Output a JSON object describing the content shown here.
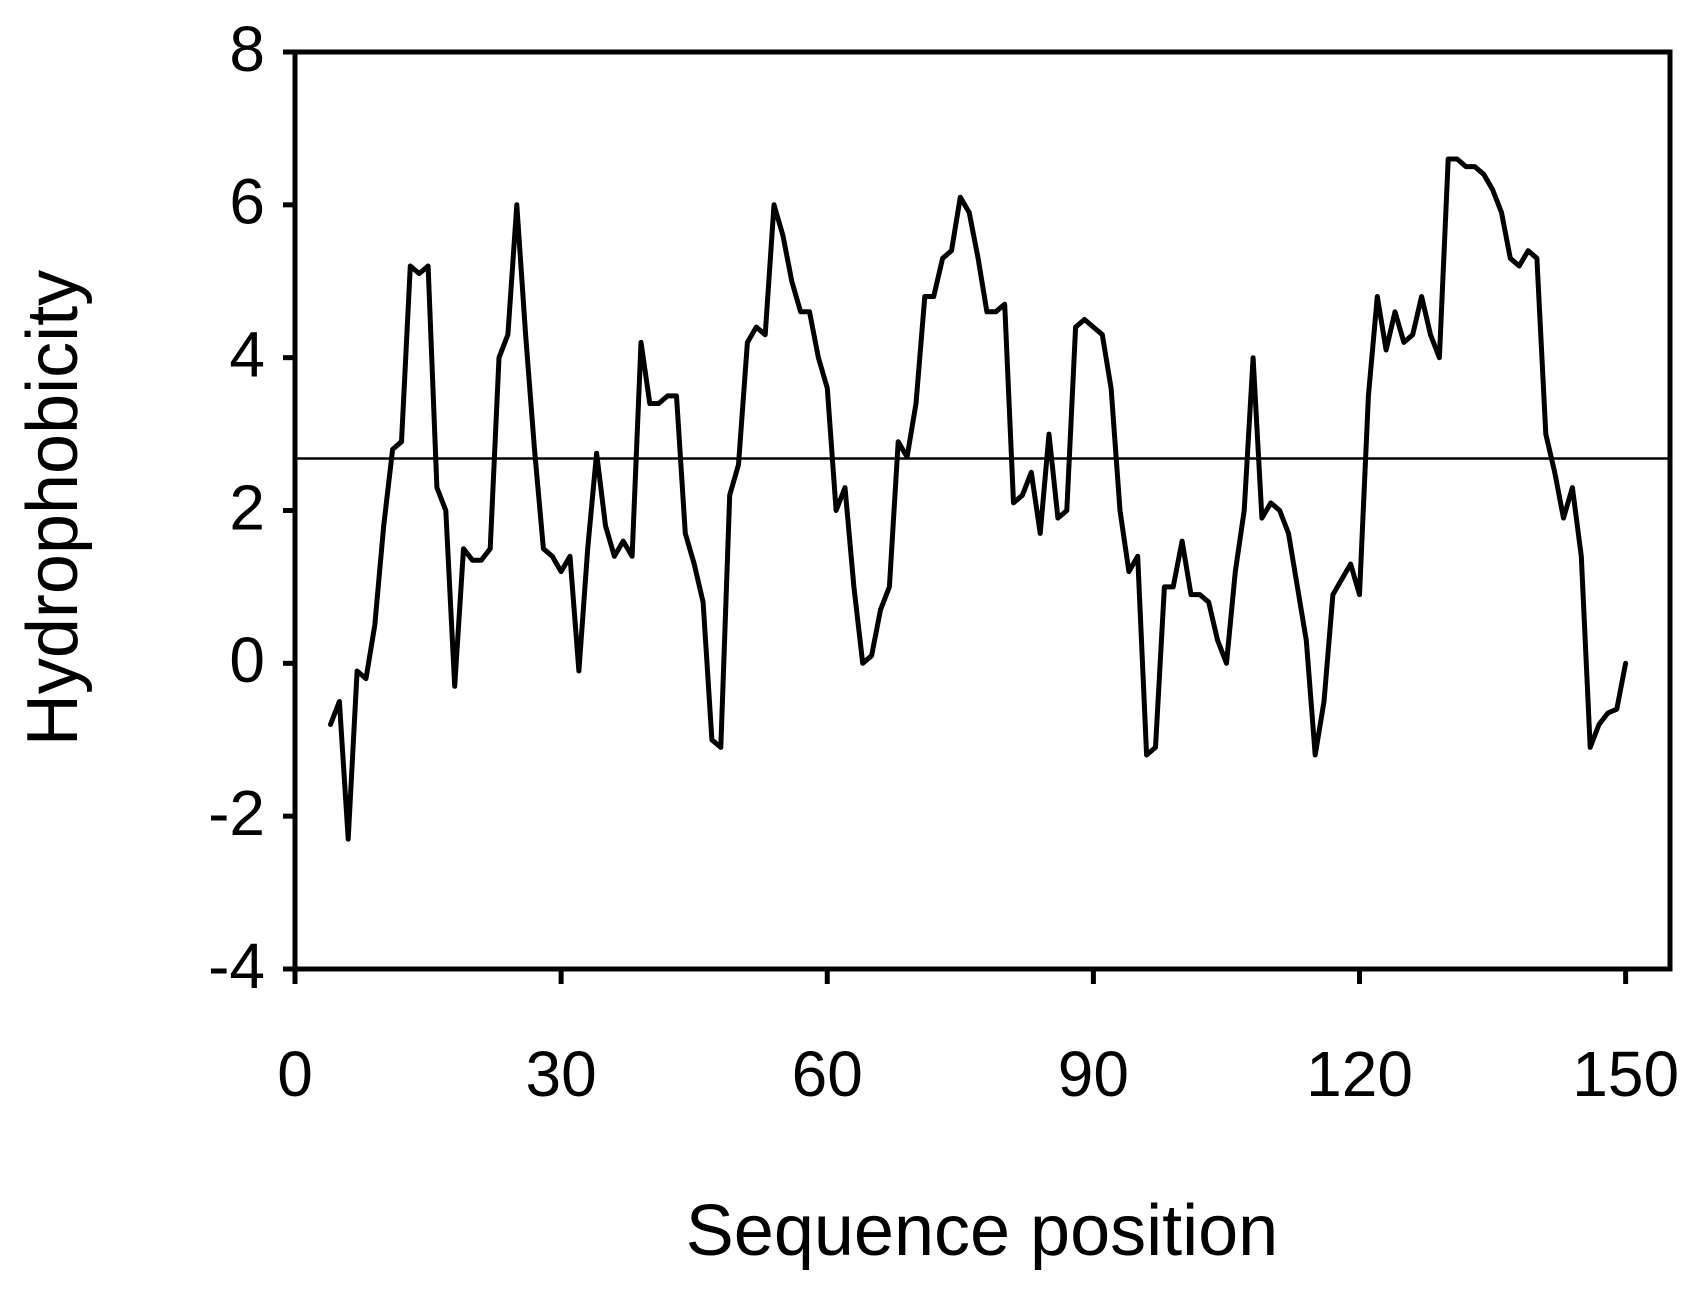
{
  "chart_data": {
    "type": "line",
    "xlabel": "Sequence position",
    "ylabel": "Hydrophobicity",
    "x": [
      4,
      5,
      6,
      7,
      8,
      9,
      10,
      11,
      12,
      13,
      14,
      15,
      16,
      17,
      18,
      19,
      20,
      21,
      22,
      23,
      24,
      25,
      26,
      27,
      28,
      29,
      30,
      31,
      32,
      33,
      34,
      35,
      36,
      37,
      38,
      39,
      40,
      41,
      42,
      43,
      44,
      45,
      46,
      47,
      48,
      49,
      50,
      51,
      52,
      53,
      54,
      55,
      56,
      57,
      58,
      59,
      60,
      61,
      62,
      63,
      64,
      65,
      66,
      67,
      68,
      69,
      70,
      71,
      72,
      73,
      74,
      75,
      76,
      77,
      78,
      79,
      80,
      81,
      82,
      83,
      84,
      85,
      86,
      87,
      88,
      89,
      90,
      91,
      92,
      93,
      94,
      95,
      96,
      97,
      98,
      99,
      100,
      101,
      102,
      103,
      104,
      105,
      106,
      107,
      108,
      109,
      110,
      111,
      112,
      113,
      114,
      115,
      116,
      117,
      118,
      119,
      120,
      121,
      122,
      123,
      124,
      125,
      126,
      127,
      128,
      129,
      130,
      131,
      132,
      133,
      134,
      135,
      136,
      137,
      138,
      139,
      140,
      141,
      142,
      143,
      144,
      145,
      146,
      147,
      148,
      149,
      150
    ],
    "values": [
      -0.8,
      -0.5,
      -2.3,
      -0.1,
      -0.2,
      0.5,
      1.8,
      2.8,
      2.9,
      5.2,
      5.1,
      5.2,
      2.3,
      2.0,
      -0.3,
      1.5,
      1.35,
      1.35,
      1.5,
      4.0,
      4.3,
      6.0,
      4.3,
      2.8,
      1.5,
      1.4,
      1.2,
      1.4,
      -0.1,
      1.5,
      2.75,
      1.8,
      1.4,
      1.6,
      1.4,
      4.2,
      3.4,
      3.4,
      3.5,
      3.5,
      1.7,
      1.3,
      0.8,
      -1.0,
      -1.1,
      2.2,
      2.6,
      4.2,
      4.4,
      4.3,
      6.0,
      5.6,
      5.0,
      4.6,
      4.6,
      4.0,
      3.6,
      2.0,
      2.3,
      1.0,
      0.0,
      0.1,
      0.7,
      1.0,
      2.9,
      2.7,
      3.4,
      4.8,
      4.8,
      5.3,
      5.4,
      6.1,
      5.9,
      5.3,
      4.6,
      4.6,
      4.7,
      2.1,
      2.2,
      2.5,
      1.7,
      3.0,
      1.9,
      2.0,
      4.4,
      4.5,
      4.4,
      4.3,
      3.6,
      2.0,
      1.2,
      1.4,
      -1.2,
      -1.1,
      1.0,
      1.0,
      1.6,
      0.9,
      0.9,
      0.8,
      0.3,
      0.0,
      1.2,
      2.0,
      4.0,
      1.9,
      2.1,
      2.0,
      1.7,
      1.0,
      0.3,
      -1.2,
      -0.5,
      0.9,
      1.1,
      1.3,
      0.9,
      3.5,
      4.8,
      4.1,
      4.6,
      4.2,
      4.3,
      4.8,
      4.3,
      4.0,
      6.6,
      6.6,
      6.5,
      6.5,
      6.4,
      6.2,
      5.9,
      5.3,
      5.2,
      5.4,
      5.3,
      3.0,
      2.5,
      1.9,
      2.3,
      1.4,
      -1.1,
      -0.8,
      -0.65,
      -0.6,
      0.0
    ],
    "color": "#000000",
    "reference_line": 2.68,
    "xlim": [
      0,
      155
    ],
    "xticks": [
      0,
      30,
      60,
      90,
      120,
      150
    ],
    "ylim": [
      -4,
      8
    ],
    "yticks": [
      -4,
      -2,
      0,
      2,
      4,
      6,
      8
    ]
  }
}
